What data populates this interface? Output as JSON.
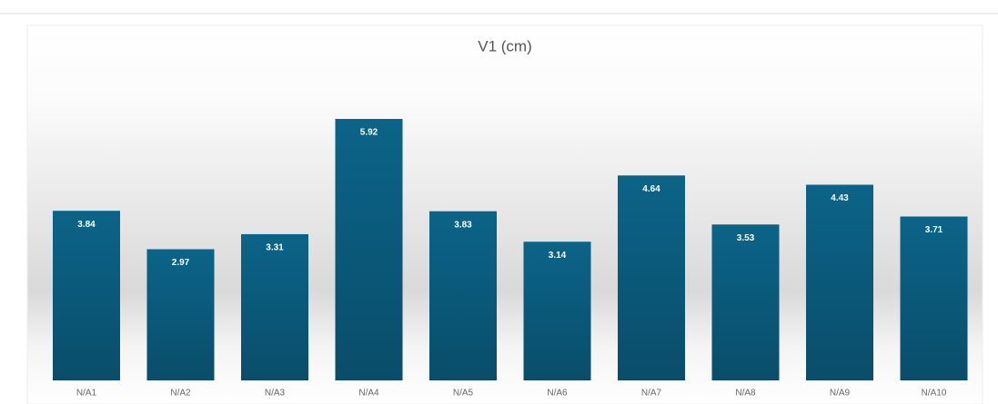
{
  "chart_data": {
    "type": "bar",
    "title": "V1 (cm)",
    "categories": [
      "N/A1",
      "N/A2",
      "N/A3",
      "N/A4",
      "N/A5",
      "N/A6",
      "N/A7",
      "N/A8",
      "N/A9",
      "N/A10"
    ],
    "values": [
      3.84,
      2.97,
      3.31,
      5.92,
      3.83,
      3.14,
      4.64,
      3.53,
      4.43,
      3.71
    ],
    "color": "#0b5f80"
  }
}
